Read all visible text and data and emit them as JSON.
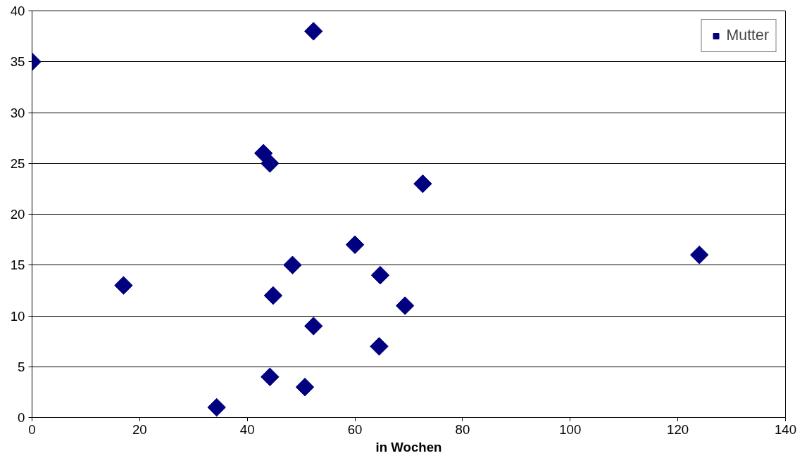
{
  "chart_data": {
    "type": "scatter",
    "xlabel": "in Wochen",
    "x": [
      0,
      52.3,
      43,
      44.2,
      72.6,
      60,
      124,
      48.4,
      17,
      64.7,
      44.8,
      69.3,
      52.3,
      64.5,
      44.2,
      50.7,
      34.3
    ],
    "series": [
      {
        "name": "Mutter",
        "color": "#000080",
        "values": [
          35,
          38,
          26,
          25,
          23,
          17,
          16,
          15,
          13,
          14,
          12,
          11,
          9,
          7,
          4,
          3,
          1
        ]
      }
    ],
    "xlim": [
      0,
      140
    ],
    "xticks": [
      0,
      20,
      40,
      60,
      80,
      100,
      120,
      140
    ],
    "ylim": [
      0,
      40
    ],
    "yticks": [
      0,
      5,
      10,
      15,
      20,
      25,
      30,
      35,
      40
    ],
    "grid": "y",
    "legend": "top right",
    "marker": "diamond"
  }
}
